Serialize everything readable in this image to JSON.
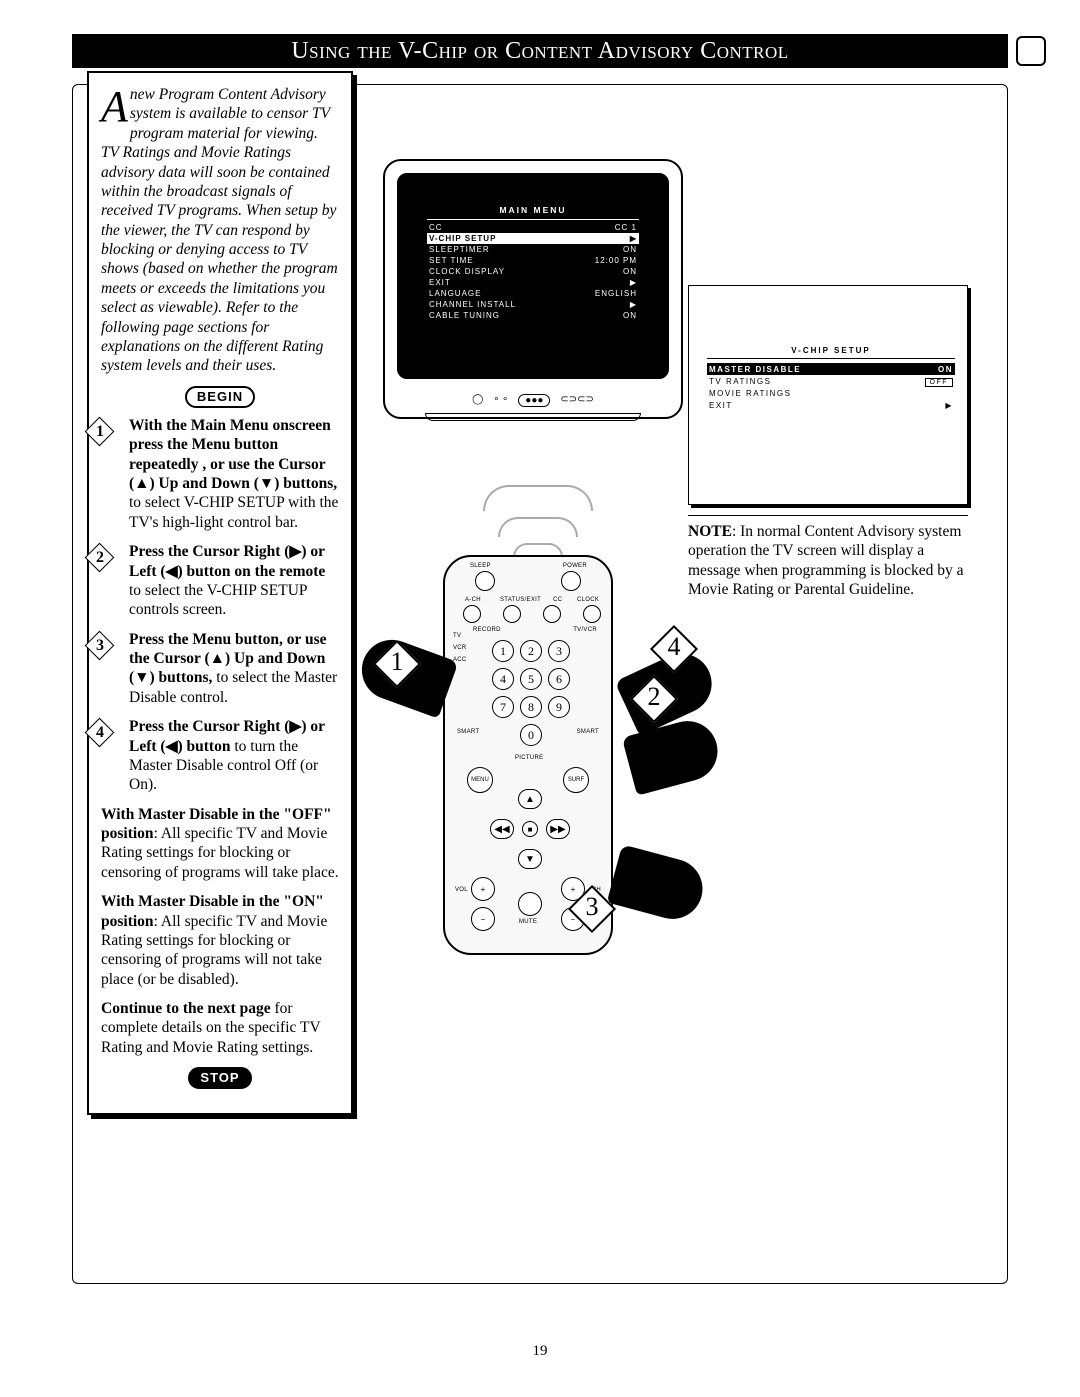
{
  "title": "Using the V-Chip or Content Advisory Control",
  "page_number": "19",
  "begin_label": "BEGIN",
  "stop_label": "STOP",
  "intro_dropcap": "A",
  "intro_text": "new Program Content Advisory system is available to censor TV program material for viewing. TV Ratings and Movie Ratings advisory data will soon be contained within the broadcast signals of received TV programs. When setup by the viewer, the TV can respond by blocking or denying access to TV shows (based on whether the program meets or exceeds the limitations you select as viewable). Refer to the following page sections for explanations on the different Rating system levels and their uses.",
  "steps": [
    {
      "n": "1",
      "bold": "With the Main Menu onscreen press the Menu button repeatedly , or use the Cursor (▲) Up and Down (▼) buttons,",
      "rest": " to select V-CHIP SETUP with the TV's high-light control bar."
    },
    {
      "n": "2",
      "bold": "Press the Cursor Right (▶) or Left (◀) button on the remote",
      "rest": " to select the V-CHIP SETUP controls screen."
    },
    {
      "n": "3",
      "bold": "Press the Menu button, or use the Cursor (▲) Up and Down (▼) buttons,",
      "rest": " to select the Master Disable control."
    },
    {
      "n": "4",
      "bold": "Press the Cursor Right (▶) or Left (◀) button",
      "rest": " to turn the Master Disable control Off (or On)."
    }
  ],
  "master_off": {
    "bold": "With Master Disable in the \"OFF\" position",
    "rest": ": All specific TV and Movie Rating settings for blocking or censoring of programs will take place."
  },
  "master_on": {
    "bold": "With Master Disable in the \"ON\" position",
    "rest": ": All specific TV and Movie Rating settings for blocking or censoring of programs will not take place (or be disabled)."
  },
  "continue": {
    "bold": "Continue to the next page",
    "rest": " for complete details on the specific TV Rating and Movie Rating settings."
  },
  "tv_menu": {
    "title": "MAIN MENU",
    "rows": [
      {
        "label": "CC",
        "value": "CC 1",
        "hl": false
      },
      {
        "label": "V-CHIP SETUP",
        "value": "▶",
        "hl": true
      },
      {
        "label": "SLEEPTIMER",
        "value": "ON",
        "hl": false
      },
      {
        "label": "SET TIME",
        "value": "12:00 PM",
        "hl": false
      },
      {
        "label": "CLOCK DISPLAY",
        "value": "ON",
        "hl": false
      },
      {
        "label": "EXIT",
        "value": "▶",
        "hl": false
      },
      {
        "label": "LANGUAGE",
        "value": "ENGLISH",
        "hl": false
      },
      {
        "label": "CHANNEL INSTALL",
        "value": "▶",
        "hl": false
      },
      {
        "label": "CABLE TUNING",
        "value": "ON",
        "hl": false
      }
    ]
  },
  "vchip_menu": {
    "title": "V-CHIP SETUP",
    "rows": [
      {
        "label": "MASTER DISABLE",
        "value": "ON",
        "hl": true
      },
      {
        "label": "TV RATINGS",
        "value": "OFF",
        "hl": false,
        "box": true
      },
      {
        "label": "MOVIE RATINGS",
        "value": "",
        "hl": false
      },
      {
        "label": "EXIT",
        "value": "▶",
        "hl": false
      }
    ]
  },
  "note": {
    "bold": "NOTE",
    "rest": ": In normal Content Advisory system operation the TV screen will display a message when programming is blocked by a Movie Rating or Parental Guideline."
  },
  "remote": {
    "labels": {
      "sleep": "SLEEP",
      "power": "POWER",
      "ach": "A-CH",
      "status": "STATUS/EXIT",
      "cc": "CC",
      "clock": "CLOCK",
      "tv": "TV",
      "vcr": "VCR",
      "acc": "ACC",
      "record": "RECORD",
      "tvvcr": "TV/VCR",
      "menu": "MENU",
      "surf": "SURF",
      "smart_l": "SMART",
      "smart_r": "SMART",
      "picture": "PICTURE",
      "vol": "VOL",
      "ch": "CH",
      "mute": "MUTE"
    },
    "nums": [
      "1",
      "2",
      "3",
      "4",
      "5",
      "6",
      "7",
      "8",
      "9",
      "0"
    ]
  },
  "callouts": {
    "c1": "1",
    "c2": "2",
    "c3": "3",
    "c4": "4"
  }
}
